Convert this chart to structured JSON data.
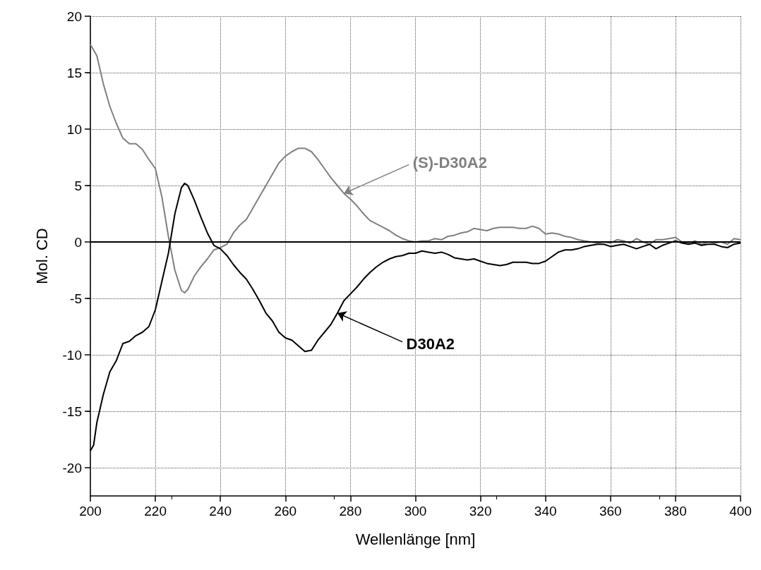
{
  "chart_data": {
    "type": "line",
    "xlabel": "Wellenlänge [nm]",
    "ylabel": "Mol. CD",
    "xlim": [
      200,
      400
    ],
    "xticks": [
      200,
      220,
      240,
      260,
      280,
      300,
      320,
      340,
      360,
      380,
      400
    ],
    "ylim": [
      -22.5,
      20
    ],
    "yticks": [
      -20,
      -15,
      -10,
      -5,
      0,
      5,
      10,
      15,
      20
    ],
    "grid": true,
    "marker": "none",
    "line_style": "solid",
    "ref_lines": [
      {
        "axis": "y",
        "value": 0,
        "color": "#000000"
      }
    ],
    "annotations": [
      {
        "text": "(S)-D30A2",
        "x": 278,
        "y": 4.3
      },
      {
        "text": "D30A2",
        "x": 276,
        "y": -6.3
      }
    ],
    "series": [
      {
        "color": "#808080",
        "x": [
          200,
          202,
          204,
          206,
          208,
          210,
          212,
          214,
          216,
          218,
          220,
          222,
          224,
          226,
          228,
          229,
          230,
          232,
          234,
          236,
          238,
          240,
          242,
          244,
          246,
          248,
          250,
          252,
          254,
          256,
          258,
          260,
          262,
          264,
          266,
          268,
          270,
          272,
          274,
          276,
          278,
          280,
          282,
          284,
          286,
          288,
          290,
          292,
          294,
          296,
          298,
          300,
          302,
          304,
          306,
          308,
          310,
          312,
          314,
          316,
          318,
          320,
          322,
          324,
          326,
          328,
          330,
          332,
          334,
          336,
          338,
          340,
          342,
          344,
          346,
          348,
          350,
          352,
          354,
          356,
          358,
          360,
          362,
          364,
          366,
          368,
          370,
          372,
          374,
          376,
          378,
          380,
          382,
          384,
          386,
          388,
          390,
          392,
          394,
          396,
          398,
          400
        ],
        "values": [
          17.5,
          16.5,
          14,
          12,
          10.5,
          9.2,
          8.7,
          8.7,
          8.2,
          7.3,
          6.5,
          4,
          0.5,
          -2.5,
          -4.3,
          -4.5,
          -4.2,
          -3,
          -2.2,
          -1.5,
          -0.7,
          -0.5,
          -0.2,
          0.8,
          1.5,
          2,
          3,
          4,
          5,
          6,
          7,
          7.6,
          8,
          8.3,
          8.3,
          8,
          7.3,
          6.5,
          5.7,
          5,
          4.3,
          3.8,
          3.2,
          2.5,
          1.9,
          1.6,
          1.3,
          1,
          0.6,
          0.3,
          0.1,
          0,
          0.1,
          0.1,
          0.3,
          0.2,
          0.5,
          0.6,
          0.8,
          0.9,
          1.2,
          1.1,
          1,
          1.2,
          1.3,
          1.3,
          1.3,
          1.2,
          1.2,
          1.4,
          1.2,
          0.7,
          0.8,
          0.7,
          0.5,
          0.4,
          0.2,
          0.1,
          0,
          -0.1,
          0,
          -0.1,
          0.2,
          0.1,
          -0.1,
          0.3,
          0,
          -0.2,
          0.2,
          0.2,
          0.3,
          0.4,
          0,
          -0.1,
          0.1,
          -0.2,
          0,
          -0.1,
          0,
          -0.2,
          0.3,
          0.2
        ]
      },
      {
        "color": "#000000",
        "x": [
          200,
          201,
          202,
          204,
          206,
          208,
          210,
          212,
          214,
          216,
          218,
          220,
          222,
          224,
          226,
          228,
          229,
          230,
          232,
          234,
          236,
          238,
          240,
          242,
          244,
          246,
          248,
          250,
          252,
          254,
          256,
          258,
          260,
          262,
          264,
          266,
          268,
          270,
          272,
          274,
          276,
          278,
          280,
          282,
          284,
          286,
          288,
          290,
          292,
          294,
          296,
          298,
          300,
          302,
          304,
          306,
          308,
          310,
          312,
          314,
          316,
          318,
          320,
          322,
          324,
          326,
          328,
          330,
          332,
          334,
          336,
          338,
          340,
          342,
          344,
          346,
          348,
          350,
          352,
          354,
          356,
          358,
          360,
          362,
          364,
          366,
          368,
          370,
          372,
          374,
          376,
          378,
          380,
          382,
          384,
          386,
          388,
          390,
          392,
          394,
          396,
          398,
          400
        ],
        "values": [
          -18.5,
          -18,
          -16,
          -13.5,
          -11.5,
          -10.5,
          -9,
          -8.8,
          -8.3,
          -8,
          -7.5,
          -6,
          -3.5,
          -1,
          2.5,
          4.8,
          5.2,
          5,
          3.7,
          2.2,
          0.8,
          -0.3,
          -0.6,
          -1.2,
          -2,
          -2.7,
          -3.3,
          -4.2,
          -5.2,
          -6.3,
          -7,
          -8,
          -8.5,
          -8.7,
          -9.2,
          -9.7,
          -9.6,
          -8.7,
          -8,
          -7.3,
          -6.3,
          -5.2,
          -4.6,
          -4,
          -3.3,
          -2.7,
          -2.2,
          -1.8,
          -1.5,
          -1.3,
          -1.2,
          -1,
          -1,
          -0.8,
          -0.9,
          -1,
          -0.9,
          -1.1,
          -1.4,
          -1.5,
          -1.6,
          -1.5,
          -1.7,
          -1.9,
          -2,
          -2.1,
          -2,
          -1.8,
          -1.8,
          -1.8,
          -1.9,
          -1.9,
          -1.7,
          -1.3,
          -0.9,
          -0.7,
          -0.7,
          -0.6,
          -0.4,
          -0.3,
          -0.2,
          -0.2,
          -0.4,
          -0.3,
          -0.2,
          -0.4,
          -0.6,
          -0.4,
          -0.2,
          -0.6,
          -0.3,
          -0.1,
          0.1,
          -0.1,
          -0.2,
          -0.1,
          -0.3,
          -0.2,
          -0.2,
          -0.4,
          -0.5,
          -0.2,
          -0.1
        ]
      }
    ]
  }
}
